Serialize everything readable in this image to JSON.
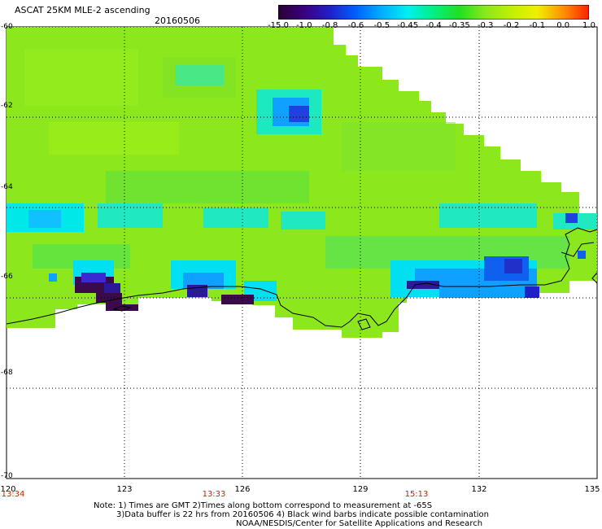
{
  "header": {
    "title": "ASCAT 25KM MLE-2 ascending",
    "date": "20160506"
  },
  "colorbar": {
    "labels": [
      "-15.0",
      "-1.0",
      "-0.8",
      "-0.6",
      "-0.5",
      "-0.45",
      "-0.4",
      "-0.35",
      "-0.3",
      "-0.2",
      "-0.1",
      "0.0",
      "1.0"
    ],
    "colors": [
      "#2a0033",
      "#3a0080",
      "#2020c8",
      "#0060ff",
      "#00b0ff",
      "#00f0f0",
      "#00f080",
      "#20e020",
      "#8ae81a",
      "#c0f000",
      "#f0f000",
      "#ff9000",
      "#ff2000"
    ]
  },
  "axes": {
    "lat_labels": [
      "-60",
      "-62",
      "-64",
      "-66",
      "-68",
      "-70"
    ],
    "lon_labels": [
      "120",
      "123",
      "126",
      "129",
      "132",
      "135"
    ],
    "time_labels": [
      "13:34",
      "13:33",
      "15:13"
    ]
  },
  "notes": [
    "Note: 1) Times are GMT 2)Times along bottom correspond to measurement at -65S",
    "3)Data buffer is 22 hrs from 20160506 4) Black wind barbs indicate possible contamination",
    "NOAA/NESDIS/Center for Satellite Applications and Research"
  ]
}
